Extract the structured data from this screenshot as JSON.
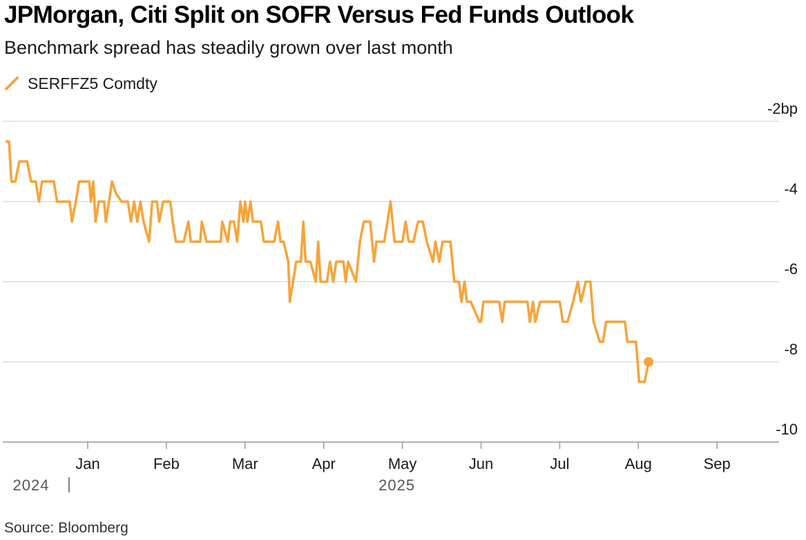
{
  "title": "JPMorgan, Citi Split on SOFR Versus Fed Funds Outlook",
  "subtitle": "Benchmark spread has steadily grown over last month",
  "source": "Source: Bloomberg",
  "colors": {
    "series": "#f5a53c",
    "grid": "#d8d8d8",
    "axis": "#999999"
  },
  "chart_data": {
    "type": "line",
    "series": [
      {
        "name": "SERFFZ5 Comdty",
        "note_x": "values in month units: 0 = start of Jan 2025, 1 = start of Feb 2025, ...",
        "points": [
          [
            -1.03,
            -2.5
          ],
          [
            -1.0,
            -2.5
          ],
          [
            -0.97,
            -3.5
          ],
          [
            -0.92,
            -3.5
          ],
          [
            -0.87,
            -3.0
          ],
          [
            -0.82,
            -3.0
          ],
          [
            -0.77,
            -3.0
          ],
          [
            -0.72,
            -3.5
          ],
          [
            -0.66,
            -3.5
          ],
          [
            -0.62,
            -4.0
          ],
          [
            -0.58,
            -3.5
          ],
          [
            -0.54,
            -3.5
          ],
          [
            -0.5,
            -3.5
          ],
          [
            -0.43,
            -3.5
          ],
          [
            -0.39,
            -4.0
          ],
          [
            -0.29,
            -4.0
          ],
          [
            -0.23,
            -4.0
          ],
          [
            -0.2,
            -4.5
          ],
          [
            -0.15,
            -4.0
          ],
          [
            -0.11,
            -3.5
          ],
          [
            -0.05,
            -3.5
          ],
          [
            0.02,
            -3.5
          ],
          [
            0.04,
            -4.0
          ],
          [
            0.07,
            -3.5
          ],
          [
            0.1,
            -4.5
          ],
          [
            0.14,
            -4.0
          ],
          [
            0.21,
            -4.0
          ],
          [
            0.23,
            -4.5
          ],
          [
            0.27,
            -4.0
          ],
          [
            0.31,
            -3.5
          ],
          [
            0.36,
            -3.8
          ],
          [
            0.43,
            -4.0
          ],
          [
            0.51,
            -4.0
          ],
          [
            0.55,
            -4.5
          ],
          [
            0.59,
            -4.0
          ],
          [
            0.63,
            -4.5
          ],
          [
            0.67,
            -4.0
          ],
          [
            0.71,
            -4.5
          ],
          [
            0.78,
            -5.0
          ],
          [
            0.82,
            -4.0
          ],
          [
            0.88,
            -4.0
          ],
          [
            0.91,
            -4.5
          ],
          [
            0.96,
            -4.0
          ],
          [
            1.05,
            -4.0
          ],
          [
            1.08,
            -4.5
          ],
          [
            1.12,
            -5.0
          ],
          [
            1.22,
            -5.0
          ],
          [
            1.28,
            -4.5
          ],
          [
            1.31,
            -5.0
          ],
          [
            1.43,
            -5.0
          ],
          [
            1.45,
            -4.5
          ],
          [
            1.51,
            -5.0
          ],
          [
            1.62,
            -5.0
          ],
          [
            1.69,
            -5.0
          ],
          [
            1.71,
            -4.5
          ],
          [
            1.78,
            -5.0
          ],
          [
            1.81,
            -4.5
          ],
          [
            1.86,
            -4.5
          ],
          [
            1.9,
            -5.0
          ],
          [
            1.94,
            -4.0
          ],
          [
            1.98,
            -4.5
          ],
          [
            2.0,
            -4.0
          ],
          [
            2.03,
            -4.5
          ],
          [
            2.07,
            -4.0
          ],
          [
            2.1,
            -4.5
          ],
          [
            2.2,
            -4.5
          ],
          [
            2.24,
            -5.0
          ],
          [
            2.37,
            -5.0
          ],
          [
            2.42,
            -4.5
          ],
          [
            2.45,
            -5.0
          ],
          [
            2.49,
            -5.0
          ],
          [
            2.55,
            -5.5
          ],
          [
            2.57,
            -6.5
          ],
          [
            2.61,
            -6.0
          ],
          [
            2.65,
            -5.5
          ],
          [
            2.71,
            -5.5
          ],
          [
            2.74,
            -4.5
          ],
          [
            2.77,
            -5.5
          ],
          [
            2.83,
            -5.5
          ],
          [
            2.9,
            -6.0
          ],
          [
            2.93,
            -5.0
          ],
          [
            2.96,
            -6.0
          ],
          [
            3.04,
            -6.0
          ],
          [
            3.08,
            -5.5
          ],
          [
            3.12,
            -6.0
          ],
          [
            3.16,
            -5.5
          ],
          [
            3.25,
            -5.5
          ],
          [
            3.28,
            -6.0
          ],
          [
            3.31,
            -5.5
          ],
          [
            3.41,
            -6.0
          ],
          [
            3.46,
            -5.0
          ],
          [
            3.51,
            -4.5
          ],
          [
            3.59,
            -4.5
          ],
          [
            3.64,
            -5.5
          ],
          [
            3.67,
            -5.0
          ],
          [
            3.77,
            -5.0
          ],
          [
            3.85,
            -4.0
          ],
          [
            3.9,
            -5.0
          ],
          [
            4.0,
            -5.0
          ],
          [
            4.04,
            -4.5
          ],
          [
            4.08,
            -5.0
          ],
          [
            4.14,
            -5.0
          ],
          [
            4.2,
            -4.5
          ],
          [
            4.26,
            -4.5
          ],
          [
            4.31,
            -5.0
          ],
          [
            4.39,
            -5.5
          ],
          [
            4.42,
            -5.0
          ],
          [
            4.47,
            -5.5
          ],
          [
            4.51,
            -5.0
          ],
          [
            4.61,
            -5.0
          ],
          [
            4.66,
            -6.0
          ],
          [
            4.72,
            -6.0
          ],
          [
            4.75,
            -6.5
          ],
          [
            4.79,
            -6.0
          ],
          [
            4.82,
            -6.5
          ],
          [
            4.87,
            -6.5
          ],
          [
            4.98,
            -7.0
          ],
          [
            5.0,
            -7.0
          ],
          [
            5.03,
            -6.5
          ],
          [
            5.23,
            -6.5
          ],
          [
            5.27,
            -7.0
          ],
          [
            5.3,
            -6.5
          ],
          [
            5.59,
            -6.5
          ],
          [
            5.62,
            -7.0
          ],
          [
            5.66,
            -6.5
          ],
          [
            5.69,
            -7.0
          ],
          [
            5.75,
            -6.5
          ],
          [
            6.0,
            -6.5
          ],
          [
            6.04,
            -7.0
          ],
          [
            6.1,
            -7.0
          ],
          [
            6.17,
            -6.5
          ],
          [
            6.23,
            -6.0
          ],
          [
            6.27,
            -6.5
          ],
          [
            6.33,
            -6.0
          ],
          [
            6.39,
            -6.0
          ],
          [
            6.43,
            -7.0
          ],
          [
            6.51,
            -7.5
          ],
          [
            6.55,
            -7.5
          ],
          [
            6.59,
            -7.0
          ],
          [
            6.83,
            -7.0
          ],
          [
            6.86,
            -7.5
          ],
          [
            6.97,
            -7.5
          ],
          [
            7.01,
            -8.5
          ],
          [
            7.08,
            -8.5
          ],
          [
            7.13,
            -8.0
          ]
        ]
      }
    ],
    "x_ticks": [
      {
        "label": "Jan",
        "x": 0
      },
      {
        "label": "Feb",
        "x": 1
      },
      {
        "label": "Mar",
        "x": 2
      },
      {
        "label": "Apr",
        "x": 3
      },
      {
        "label": "May",
        "x": 4
      },
      {
        "label": "Jun",
        "x": 5
      },
      {
        "label": "Jul",
        "x": 6
      },
      {
        "label": "Aug",
        "x": 7
      },
      {
        "label": "Sep",
        "x": 8
      }
    ],
    "years": [
      {
        "label": "2024",
        "x": -0.72,
        "separator": true
      },
      {
        "label": "2025",
        "x": 3.93,
        "separator": false
      }
    ],
    "y_ticks": [
      {
        "value": -2,
        "label": "-2bp"
      },
      {
        "value": -4,
        "label": "-4"
      },
      {
        "value": -6,
        "label": "-6"
      },
      {
        "value": -8,
        "label": "-8"
      },
      {
        "value": -10,
        "label": "-10"
      }
    ],
    "xlim": [
      -1.1,
      8.5
    ],
    "ylim": [
      -10,
      -2
    ],
    "end_marker": true,
    "grid": true,
    "legend": "top-left"
  }
}
